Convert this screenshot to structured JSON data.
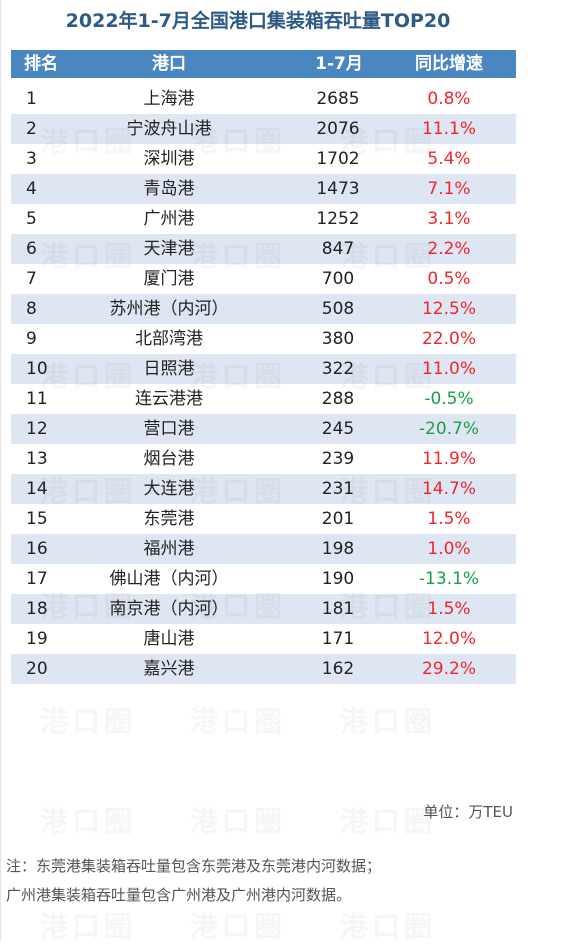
{
  "chart_data": {
    "type": "table",
    "title": "2022年1-7月全国港口集装箱吞吐量TOP20",
    "columns": [
      "排名",
      "港口",
      "1-7月",
      "同比增速"
    ],
    "rows": [
      {
        "rank": "1",
        "port": "上海港",
        "value": "2685",
        "change": "0.8%",
        "sign": "pos"
      },
      {
        "rank": "2",
        "port": "宁波舟山港",
        "value": "2076",
        "change": "11.1%",
        "sign": "pos"
      },
      {
        "rank": "3",
        "port": "深圳港",
        "value": "1702",
        "change": "5.4%",
        "sign": "pos"
      },
      {
        "rank": "4",
        "port": "青岛港",
        "value": "1473",
        "change": "7.1%",
        "sign": "pos"
      },
      {
        "rank": "5",
        "port": "广州港",
        "value": "1252",
        "change": "3.1%",
        "sign": "pos"
      },
      {
        "rank": "6",
        "port": "天津港",
        "value": "847",
        "change": "2.2%",
        "sign": "pos"
      },
      {
        "rank": "7",
        "port": "厦门港",
        "value": "700",
        "change": "0.5%",
        "sign": "pos"
      },
      {
        "rank": "8",
        "port": "苏州港（内河）",
        "value": "508",
        "change": "12.5%",
        "sign": "pos"
      },
      {
        "rank": "9",
        "port": "北部湾港",
        "value": "380",
        "change": "22.0%",
        "sign": "pos"
      },
      {
        "rank": "10",
        "port": "日照港",
        "value": "322",
        "change": "11.0%",
        "sign": "pos"
      },
      {
        "rank": "11",
        "port": "连云港港",
        "value": "288",
        "change": "-0.5%",
        "sign": "neg"
      },
      {
        "rank": "12",
        "port": "营口港",
        "value": "245",
        "change": "-20.7%",
        "sign": "neg"
      },
      {
        "rank": "13",
        "port": "烟台港",
        "value": "239",
        "change": "11.9%",
        "sign": "pos"
      },
      {
        "rank": "14",
        "port": "大连港",
        "value": "231",
        "change": "14.7%",
        "sign": "pos"
      },
      {
        "rank": "15",
        "port": "东莞港",
        "value": "201",
        "change": "1.5%",
        "sign": "pos"
      },
      {
        "rank": "16",
        "port": "福州港",
        "value": "198",
        "change": "1.0%",
        "sign": "pos"
      },
      {
        "rank": "17",
        "port": "佛山港（内河）",
        "value": "190",
        "change": "-13.1%",
        "sign": "neg"
      },
      {
        "rank": "18",
        "port": "南京港（内河）",
        "value": "181",
        "change": "1.5%",
        "sign": "pos"
      },
      {
        "rank": "19",
        "port": "唐山港",
        "value": "171",
        "change": "12.0%",
        "sign": "pos"
      },
      {
        "rank": "20",
        "port": "嘉兴港",
        "value": "162",
        "change": "29.2%",
        "sign": "pos"
      }
    ],
    "unit": "单位：万TEU",
    "notes": [
      "注：东莞港集装箱吞吐量包含东莞港及东莞港内河数据；",
      "广州港集装箱吞吐量包含广州港及广州港内河数据。"
    ],
    "watermark": "港口圈"
  },
  "colors": {
    "title": "#2e5a86",
    "header_bg": "#4a86c0",
    "alt_row_bg": "#dde6f2",
    "positive": "#f0262c",
    "negative": "#1aa04a"
  }
}
